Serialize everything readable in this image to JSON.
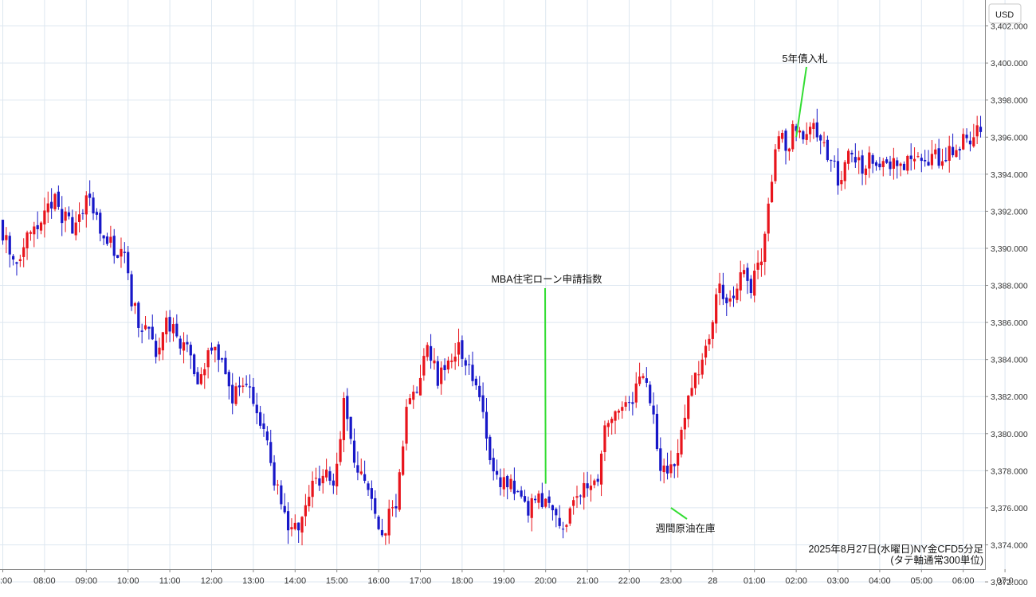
{
  "currency_button": "USD",
  "caption": {
    "line1": "2025年8月27日(水曜日)NY金CFD5分足",
    "line2": "(タテ軸通常300単位)"
  },
  "colors": {
    "up": "#e8141c",
    "down": "#1717c8",
    "grid": "#dde7f0",
    "annotation_line": "#33dd33",
    "axis_text": "#333333",
    "chart_border": "#888888"
  },
  "chart_data": {
    "type": "candlestick",
    "interval": "5 minutes",
    "ylim": [
      3371.4,
      3403.4
    ],
    "y_ticks": [
      3372,
      3374,
      3376,
      3378,
      3380,
      3382,
      3384,
      3386,
      3388,
      3390,
      3392,
      3394,
      3396,
      3398,
      3400,
      3402
    ],
    "y_tick_labels": [
      "3,372.000",
      "3,374.000",
      "3,376.000",
      "3,378.000",
      "3,380.000",
      "3,382.000",
      "3,384.000",
      "3,386.000",
      "3,388.000",
      "3,390.000",
      "3,392.000",
      "3,394.000",
      "3,396.000",
      "3,398.000",
      "3,400.000",
      "3,402.000"
    ],
    "x_time_range": [
      "07:00",
      "07:15"
    ],
    "x_ticks": [
      "07:00",
      "08:00",
      "09:00",
      "10:00",
      "11:00",
      "12:00",
      "13:00",
      "14:00",
      "15:00",
      "16:00",
      "17:00",
      "18:00",
      "19:00",
      "20:00",
      "21:00",
      "22:00",
      "23:00",
      "00:00",
      "01:00",
      "02:00",
      "03:00",
      "04:00",
      "05:00",
      "06:00",
      "07:00"
    ],
    "x_tick_labels": [
      ":00",
      "08:00",
      "09:00",
      "10:00",
      "11:00",
      "12:00",
      "13:00",
      "14:00",
      "15:00",
      "16:00",
      "17:00",
      "18:00",
      "19:00",
      "20:00",
      "21:00",
      "22:00",
      "23:00",
      "28",
      "01:00",
      "02:00",
      "03:00",
      "04:00",
      "05:00",
      "06:00",
      "07:0"
    ],
    "anchors": [
      [
        "07:00",
        3391.5
      ],
      [
        "07:20",
        3389.0
      ],
      [
        "07:45",
        3391.0
      ],
      [
        "08:20",
        3392.5
      ],
      [
        "08:45",
        3391.0
      ],
      [
        "09:10",
        3393.0
      ],
      [
        "09:25",
        3391.0
      ],
      [
        "09:45",
        3390.0
      ],
      [
        "10:00",
        3389.5
      ],
      [
        "10:10",
        3387.0
      ],
      [
        "10:30",
        3385.5
      ],
      [
        "10:45",
        3384.5
      ],
      [
        "11:00",
        3386.5
      ],
      [
        "11:15",
        3385.0
      ],
      [
        "11:30",
        3385.0
      ],
      [
        "11:45",
        3383.0
      ],
      [
        "12:00",
        3384.5
      ],
      [
        "12:15",
        3384.0
      ],
      [
        "12:35",
        3382.0
      ],
      [
        "13:00",
        3382.5
      ],
      [
        "13:15",
        3380.5
      ],
      [
        "13:40",
        3377.0
      ],
      [
        "14:00",
        3374.5
      ],
      [
        "14:15",
        3375.5
      ],
      [
        "14:35",
        3377.5
      ],
      [
        "14:50",
        3378.0
      ],
      [
        "15:00",
        3377.5
      ],
      [
        "15:15",
        3381.5
      ],
      [
        "15:35",
        3378.0
      ],
      [
        "15:50",
        3376.5
      ],
      [
        "16:10",
        3374.5
      ],
      [
        "16:30",
        3376.5
      ],
      [
        "16:45",
        3381.0
      ],
      [
        "17:00",
        3382.5
      ],
      [
        "17:15",
        3384.5
      ],
      [
        "17:30",
        3383.0
      ],
      [
        "17:45",
        3383.5
      ],
      [
        "18:00",
        3384.5
      ],
      [
        "18:15",
        3384.0
      ],
      [
        "18:30",
        3382.0
      ],
      [
        "18:45",
        3379.0
      ],
      [
        "19:00",
        3377.5
      ],
      [
        "19:20",
        3377.0
      ],
      [
        "19:40",
        3376.0
      ],
      [
        "20:00",
        3376.5
      ],
      [
        "20:15",
        3375.5
      ],
      [
        "20:30",
        3375.0
      ],
      [
        "20:45",
        3376.5
      ],
      [
        "21:00",
        3377.0
      ],
      [
        "21:20",
        3377.0
      ],
      [
        "21:30",
        3380.5
      ],
      [
        "21:50",
        3381.0
      ],
      [
        "22:10",
        3381.5
      ],
      [
        "22:20",
        3383.5
      ],
      [
        "22:35",
        3382.0
      ],
      [
        "22:50",
        3378.0
      ],
      [
        "23:00",
        3377.5
      ],
      [
        "23:20",
        3380.0
      ],
      [
        "23:30",
        3382.0
      ],
      [
        "23:45",
        3383.5
      ],
      [
        "00:00",
        3385.0
      ],
      [
        "00:15",
        3388.0
      ],
      [
        "00:30",
        3387.0
      ],
      [
        "00:45",
        3388.5
      ],
      [
        "01:00",
        3388.0
      ],
      [
        "01:15",
        3389.5
      ],
      [
        "01:30",
        3393.5
      ],
      [
        "01:40",
        3396.5
      ],
      [
        "01:50",
        3395.0
      ],
      [
        "02:00",
        3396.5
      ],
      [
        "02:15",
        3396.0
      ],
      [
        "02:30",
        3396.5
      ],
      [
        "02:45",
        3395.5
      ],
      [
        "03:00",
        3394.5
      ],
      [
        "03:05",
        3393.0
      ],
      [
        "03:20",
        3395.5
      ],
      [
        "03:40",
        3394.5
      ],
      [
        "04:00",
        3395.0
      ],
      [
        "04:30",
        3394.5
      ],
      [
        "05:00",
        3395.0
      ],
      [
        "05:30",
        3395.0
      ],
      [
        "06:00",
        3395.5
      ],
      [
        "06:30",
        3396.5
      ],
      [
        "06:45",
        3397.0
      ],
      [
        "07:00",
        3397.0
      ],
      [
        "07:10",
        3397.5
      ]
    ],
    "annotations": [
      {
        "label": "MBA住宅ローン申請指数",
        "time": "20:00",
        "price": 3377.3
      },
      {
        "label": "週間原油在庫",
        "time": "23:00",
        "price": 3376.0
      },
      {
        "label": "5年債入札",
        "time": "02:00",
        "price": 3396.0
      }
    ]
  }
}
